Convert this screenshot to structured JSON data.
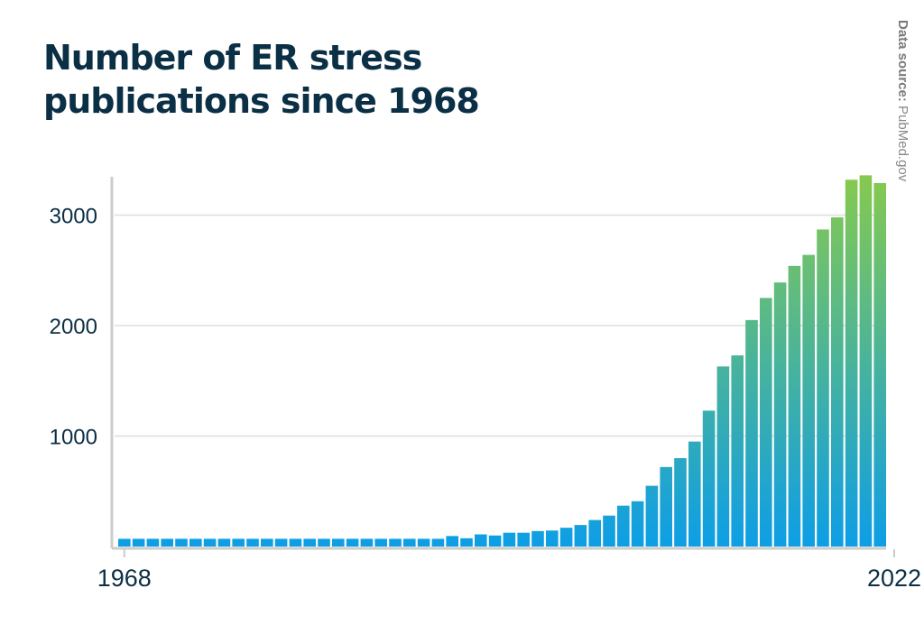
{
  "title": "Number of ER stress publications since 1968",
  "source": {
    "label": "Data source:",
    "value": "PubMed.gov"
  },
  "colors": {
    "bar_bottom": "#0d9ee6",
    "bar_top": "#86c94f",
    "text": "#0b2f45",
    "grid": "#dddddd",
    "axis": "#cccccc"
  },
  "chart_data": {
    "type": "bar",
    "x_tick_labels": [
      "1968",
      "2022"
    ],
    "y_ticks": [
      1000,
      2000,
      3000
    ],
    "ylim": [
      0,
      3400
    ],
    "grid": true,
    "categories": [
      "1968",
      "1969",
      "1970",
      "1971",
      "1972",
      "1973",
      "1974",
      "1975",
      "1976",
      "1977",
      "1978",
      "1979",
      "1980",
      "1981",
      "1982",
      "1983",
      "1984",
      "1985",
      "1986",
      "1987",
      "1988",
      "1989",
      "1990",
      "1991",
      "1992",
      "1993",
      "1994",
      "1995",
      "1996",
      "1997",
      "1998",
      "1999",
      "2000",
      "2001",
      "2002",
      "2003",
      "2004",
      "2005",
      "2006",
      "2007",
      "2008",
      "2009",
      "2010",
      "2011",
      "2012",
      "2013",
      "2014",
      "2015",
      "2016",
      "2017",
      "2018",
      "2019",
      "2020",
      "2021",
      "2022"
    ],
    "values": [
      70,
      70,
      70,
      70,
      70,
      70,
      70,
      70,
      70,
      70,
      70,
      70,
      70,
      70,
      70,
      70,
      70,
      70,
      70,
      70,
      70,
      70,
      70,
      95,
      75,
      110,
      100,
      125,
      125,
      140,
      145,
      170,
      195,
      240,
      280,
      370,
      410,
      550,
      720,
      800,
      950,
      1230,
      1630,
      1730,
      2050,
      2250,
      2390,
      2540,
      2640,
      2870,
      2980,
      3320,
      3360,
      3290,
      null
    ]
  }
}
